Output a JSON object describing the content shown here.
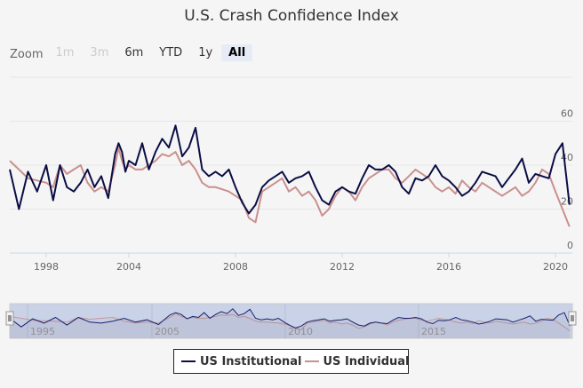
{
  "chart_data": {
    "type": "line",
    "title": "U.S. Crash Confidence Index",
    "xlabel": "",
    "ylabel": "",
    "ylim": [
      0,
      80
    ],
    "yticks": [
      0,
      20,
      40,
      60
    ],
    "xticks": [
      "1998",
      "2004",
      "2008",
      "2012",
      "2016",
      "2020"
    ],
    "grid": true,
    "legend_position": "bottom-center",
    "x": [
      1996.0,
      1996.5,
      1997.0,
      1997.5,
      1998.0,
      1998.5,
      1999.0,
      1999.5,
      2000.0,
      2000.5,
      2001.0,
      2001.5,
      2002.0,
      2002.5,
      2003.0,
      2003.25,
      2003.5,
      2003.75,
      2004.0,
      2004.25,
      2004.5,
      2004.75,
      2005.0,
      2005.25,
      2005.5,
      2005.75,
      2006.0,
      2006.25,
      2006.5,
      2006.75,
      2007.0,
      2007.25,
      2007.5,
      2007.75,
      2008.0,
      2008.25,
      2008.5,
      2008.75,
      2009.0,
      2009.25,
      2009.5,
      2009.75,
      2010.0,
      2010.25,
      2010.5,
      2010.75,
      2011.0,
      2011.25,
      2011.5,
      2011.75,
      2012.0,
      2012.25,
      2012.5,
      2012.75,
      2013.0,
      2013.25,
      2013.5,
      2013.75,
      2014.0,
      2014.25,
      2014.5,
      2014.75,
      2015.0,
      2015.25,
      2015.5,
      2015.75,
      2016.0,
      2016.25,
      2016.5,
      2016.75,
      2017.0,
      2017.25,
      2017.5,
      2017.75,
      2018.0,
      2018.25,
      2018.5,
      2018.75,
      2019.0,
      2019.25,
      2019.5,
      2019.75,
      2020.0,
      2020.25,
      2020.5
    ],
    "series": [
      {
        "name": "US Institutional",
        "color": "#0b0e45",
        "values": [
          38,
          20,
          37,
          28,
          40,
          24,
          40,
          30,
          28,
          32,
          38,
          30,
          35,
          25,
          45,
          50,
          46,
          37,
          42,
          40,
          50,
          38,
          46,
          52,
          48,
          58,
          44,
          48,
          57,
          38,
          35,
          37,
          35,
          38,
          30,
          23,
          18,
          22,
          30,
          33,
          35,
          37,
          32,
          34,
          35,
          37,
          30,
          24,
          22,
          28,
          30,
          28,
          27,
          34,
          40,
          38,
          38,
          40,
          37,
          30,
          27,
          34,
          33,
          35,
          40,
          35,
          33,
          30,
          26,
          28,
          32,
          37,
          36,
          35,
          30,
          34,
          38,
          43,
          32,
          36,
          35,
          34,
          45,
          50,
          22
        ],
        "stroke_width": 2
      },
      {
        "name": "US Individual",
        "color": "#c9908e",
        "values": [
          42,
          38,
          34,
          33,
          32,
          30,
          40,
          36,
          38,
          40,
          32,
          28,
          30,
          28,
          40,
          48,
          42,
          38,
          40,
          38,
          38,
          40,
          42,
          45,
          44,
          46,
          40,
          42,
          38,
          32,
          30,
          30,
          29,
          28,
          26,
          24,
          16,
          14,
          28,
          30,
          32,
          34,
          28,
          30,
          26,
          28,
          24,
          17,
          20,
          26,
          30,
          28,
          24,
          30,
          34,
          36,
          38,
          38,
          34,
          32,
          35,
          38,
          36,
          34,
          30,
          28,
          30,
          27,
          33,
          30,
          28,
          32,
          30,
          28,
          26,
          28,
          30,
          26,
          28,
          32,
          38,
          36,
          28,
          20,
          12
        ],
        "stroke_width": 2
      }
    ],
    "navigator": {
      "labels": [
        "1995",
        "2005",
        "2010",
        "2015"
      ]
    }
  },
  "range_selector": {
    "label": "Zoom",
    "buttons": [
      {
        "label": "1m",
        "state": "disabled"
      },
      {
        "label": "3m",
        "state": "disabled"
      },
      {
        "label": "6m",
        "state": "normal"
      },
      {
        "label": "YTD",
        "state": "normal"
      },
      {
        "label": "1y",
        "state": "normal"
      },
      {
        "label": "All",
        "state": "active"
      }
    ]
  },
  "legend": {
    "items": [
      {
        "label": "US Institutional",
        "color": "#0b0e45"
      },
      {
        "label": "US Individual",
        "color": "#c9908e"
      }
    ]
  }
}
